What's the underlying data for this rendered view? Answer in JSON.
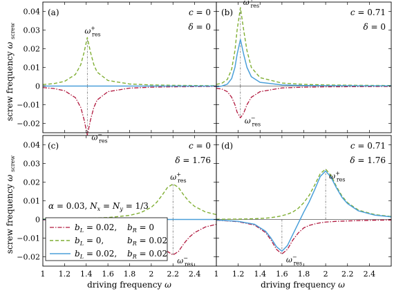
{
  "colors": {
    "bL_only": "#b0173d",
    "bR_only": "#7fae32",
    "both": "#4a9fd9"
  },
  "axes": {
    "xlabel": "driving frequency",
    "xsym": "ω",
    "ylabel": "screw frequency",
    "ysym": "ω",
    "ysub": "screw",
    "xticks": [
      "1",
      "1.2",
      "1.4",
      "1.6",
      "1.8",
      "2",
      "2.2",
      "2.4"
    ],
    "yticks": [
      "0.04",
      "0.03",
      "0.02",
      "0.01",
      "0",
      "−0.01",
      "−0.02"
    ],
    "xlim": [
      1,
      2.6
    ],
    "ylim": [
      -0.025,
      0.045
    ]
  },
  "legend": {
    "entries": [
      {
        "series": "bL_only",
        "bL": "0.02",
        "bR": "0"
      },
      {
        "series": "bR_only",
        "bL": "0",
        "bR": "0.02"
      },
      {
        "series": "both",
        "bL": "0.02",
        "bR": "0.02"
      }
    ]
  },
  "alpha_note": {
    "alpha": "0.03",
    "N": "1/3"
  },
  "res_label": {
    "sym": "ω",
    "sub": "res",
    "plus": "+",
    "minus": "−"
  },
  "chart_data": [
    {
      "type": "line",
      "label": "(a)",
      "c": "0",
      "delta": "0",
      "x": [
        1.0,
        1.1,
        1.2,
        1.3,
        1.35,
        1.38,
        1.41,
        1.44,
        1.47,
        1.5,
        1.6,
        1.8,
        2.0,
        2.2,
        2.4,
        2.6
      ],
      "series": [
        {
          "key": "bL_only",
          "y": [
            -0.0008,
            -0.0013,
            -0.0025,
            -0.0062,
            -0.0115,
            -0.018,
            -0.0262,
            -0.018,
            -0.0115,
            -0.0075,
            -0.003,
            -0.0011,
            -0.0006,
            -0.0004,
            -0.0003,
            -0.0002
          ]
        },
        {
          "key": "bR_only",
          "y": [
            0.0008,
            0.0013,
            0.0025,
            0.0062,
            0.0115,
            0.018,
            0.026,
            0.018,
            0.0115,
            0.0075,
            0.003,
            0.0011,
            0.0006,
            0.0004,
            0.0003,
            0.0002
          ]
        },
        {
          "key": "both",
          "y": [
            0,
            0,
            0,
            0,
            0,
            0,
            0,
            0,
            0,
            0,
            0,
            0,
            0,
            0,
            0,
            0
          ]
        }
      ],
      "res": [
        {
          "x": 1.41,
          "y": 0.026,
          "sign": "plus"
        },
        {
          "x": 1.41,
          "y": -0.026,
          "sign": "minus"
        }
      ]
    },
    {
      "type": "line",
      "label": "(b)",
      "c": "0.71",
      "delta": "0",
      "x": [
        1.0,
        1.05,
        1.1,
        1.14,
        1.17,
        1.19,
        1.22,
        1.25,
        1.28,
        1.32,
        1.4,
        1.6,
        1.8,
        2.0,
        2.3,
        2.6
      ],
      "series": [
        {
          "key": "bL_only",
          "y": [
            -0.0012,
            -0.0016,
            -0.003,
            -0.006,
            -0.01,
            -0.014,
            -0.017,
            -0.0145,
            -0.01,
            -0.006,
            -0.003,
            -0.001,
            -0.0006,
            -0.0004,
            -0.0003,
            -0.0002
          ]
        },
        {
          "key": "bR_only",
          "y": [
            0.0009,
            0.0015,
            0.0035,
            0.009,
            0.019,
            0.03,
            0.042,
            0.03,
            0.019,
            0.01,
            0.0045,
            0.0016,
            0.0009,
            0.0006,
            0.0004,
            0.0003
          ]
        },
        {
          "key": "both",
          "y": [
            -0.0004,
            0.0,
            0.001,
            0.004,
            0.01,
            0.017,
            0.025,
            0.017,
            0.01,
            0.005,
            0.002,
            0.0006,
            0.0003,
            0.0002,
            0.0001,
            0.0001
          ]
        }
      ],
      "res": [
        {
          "x": 1.22,
          "y": 0.042,
          "sign": "plus"
        },
        {
          "x": 1.22,
          "y": -0.017,
          "sign": "minus"
        }
      ]
    },
    {
      "type": "line",
      "label": "(c)",
      "c": "0",
      "delta": "1.76",
      "x": [
        1.0,
        1.2,
        1.4,
        1.6,
        1.8,
        1.9,
        2.0,
        2.05,
        2.1,
        2.15,
        2.2,
        2.25,
        2.3,
        2.35,
        2.4,
        2.5,
        2.6
      ],
      "series": [
        {
          "key": "bL_only",
          "y": [
            -0.0002,
            -0.0004,
            -0.0006,
            -0.001,
            -0.0022,
            -0.0036,
            -0.0065,
            -0.0092,
            -0.013,
            -0.0172,
            -0.019,
            -0.0172,
            -0.013,
            -0.0095,
            -0.007,
            -0.004,
            -0.0026
          ]
        },
        {
          "key": "bR_only",
          "y": [
            0.0002,
            0.0004,
            0.0006,
            0.001,
            0.0022,
            0.0036,
            0.0065,
            0.0092,
            0.013,
            0.0172,
            0.019,
            0.0172,
            0.013,
            0.0095,
            0.007,
            0.004,
            0.0026
          ]
        },
        {
          "key": "both",
          "y": [
            0,
            0,
            0,
            0,
            0,
            0,
            0,
            0,
            0,
            0,
            0,
            0,
            0,
            0,
            0,
            0,
            0
          ]
        }
      ],
      "res": [
        {
          "x": 2.2,
          "y": 0.019,
          "sign": "plus"
        },
        {
          "x": 2.2,
          "y": -0.019,
          "sign": "minus"
        }
      ]
    },
    {
      "type": "line",
      "label": "(d)",
      "c": "0.71",
      "delta": "1.76",
      "x": [
        1.0,
        1.2,
        1.35,
        1.45,
        1.5,
        1.55,
        1.6,
        1.65,
        1.7,
        1.75,
        1.8,
        1.85,
        1.9,
        1.95,
        2.0,
        2.05,
        2.1,
        2.15,
        2.2,
        2.3,
        2.45,
        2.6
      ],
      "series": [
        {
          "key": "bL_only",
          "y": [
            -0.0004,
            -0.0012,
            -0.003,
            -0.007,
            -0.011,
            -0.016,
            -0.0185,
            -0.016,
            -0.011,
            -0.0072,
            -0.0045,
            -0.0032,
            -0.0024,
            -0.0018,
            -0.0014,
            -0.0012,
            -0.001,
            -0.0009,
            -0.0008,
            -0.0006,
            -0.0004,
            -0.0003
          ]
        },
        {
          "key": "bR_only",
          "y": [
            0.0001,
            0.0002,
            0.0004,
            0.0007,
            0.001,
            0.0014,
            0.002,
            0.0028,
            0.004,
            0.006,
            0.009,
            0.013,
            0.0185,
            0.0245,
            0.027,
            0.0235,
            0.0175,
            0.0125,
            0.009,
            0.005,
            0.0026,
            0.0016
          ]
        },
        {
          "key": "both",
          "y": [
            -0.0003,
            -0.001,
            -0.0026,
            -0.0063,
            -0.01,
            -0.0146,
            -0.017,
            -0.014,
            -0.008,
            -0.002,
            0.004,
            0.0095,
            0.016,
            0.023,
            0.026,
            0.0225,
            0.0168,
            0.0118,
            0.0085,
            0.0046,
            0.0023,
            0.0014
          ]
        }
      ],
      "res": [
        {
          "x": 2.0,
          "y": 0.027,
          "sign": "plus"
        },
        {
          "x": 1.6,
          "y": -0.0185,
          "sign": "minus"
        }
      ]
    }
  ]
}
